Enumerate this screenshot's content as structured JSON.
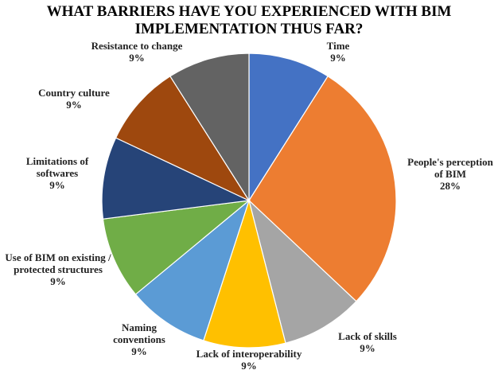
{
  "chart_data": {
    "type": "pie",
    "title": "WHAT BARRIERS HAVE YOU EXPERIENCED WITH BIM IMPLEMENTATION THUS FAR?",
    "categories": [
      "Time",
      "People's perception of BIM",
      "Lack of skills",
      "Lack of interoperability",
      "Naming conventions",
      "Use of BIM on existing / protected structures",
      "Limitations of softwares",
      "Country culture",
      "Resistance to change"
    ],
    "values": [
      9,
      28,
      9,
      9,
      9,
      9,
      9,
      9,
      9
    ],
    "value_labels": [
      "9%",
      "28%",
      "9%",
      "9%",
      "9%",
      "9%",
      "9%",
      "9%",
      "9%"
    ],
    "colors": [
      "#4472c4",
      "#ed7d31",
      "#a5a5a5",
      "#ffc000",
      "#5b9bd5",
      "#70ad47",
      "#264478",
      "#9e480e",
      "#636363"
    ]
  }
}
